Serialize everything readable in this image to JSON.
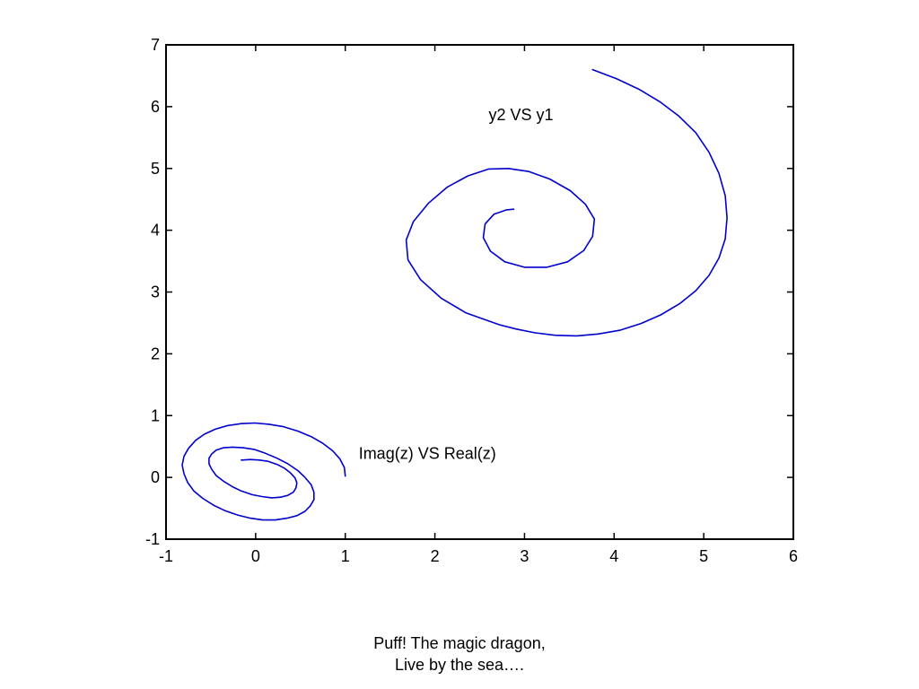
{
  "chart_data": {
    "type": "line",
    "title": "",
    "xlabel": "",
    "ylabel": "",
    "xlim": [
      -1,
      6
    ],
    "ylim": [
      -1,
      7
    ],
    "x_ticks": [
      -1,
      0,
      1,
      2,
      3,
      4,
      5,
      6
    ],
    "y_ticks": [
      -1,
      0,
      1,
      2,
      3,
      4,
      5,
      6,
      7
    ],
    "x_tick_labels": [
      "-1",
      "0",
      "1",
      "2",
      "3",
      "4",
      "5",
      "6"
    ],
    "y_tick_labels": [
      "-1",
      "0",
      "1",
      "2",
      "3",
      "4",
      "5",
      "6",
      "7"
    ],
    "grid": false,
    "line_color": "#0000cc",
    "series": [
      {
        "x": [
          1.0,
          0.99,
          0.94,
          0.86,
          0.75,
          0.62,
          0.47,
          0.31,
          0.15,
          -0.01,
          -0.16,
          -0.31,
          -0.45,
          -0.57,
          -0.67,
          -0.75,
          -0.8,
          -0.82,
          -0.8,
          -0.76,
          -0.69,
          -0.59,
          -0.47,
          -0.34,
          -0.2,
          -0.06,
          0.08,
          0.22,
          0.35,
          0.46,
          0.55,
          0.61,
          0.65,
          0.65,
          0.62,
          0.55,
          0.47,
          0.36,
          0.24,
          0.11,
          -0.01,
          -0.14,
          -0.26,
          -0.36,
          -0.44,
          -0.49,
          -0.52,
          -0.52,
          -0.49,
          -0.44,
          -0.36,
          -0.26,
          -0.16,
          -0.04,
          0.07,
          0.18,
          0.28,
          0.36,
          0.42,
          0.45,
          0.46,
          0.44,
          0.39,
          0.32,
          0.24,
          0.14,
          0.04,
          -0.06,
          -0.15,
          -0.16
        ],
        "y": [
          0.02,
          0.16,
          0.3,
          0.43,
          0.55,
          0.66,
          0.75,
          0.82,
          0.86,
          0.88,
          0.87,
          0.84,
          0.78,
          0.7,
          0.6,
          0.47,
          0.34,
          0.2,
          0.06,
          -0.08,
          -0.22,
          -0.34,
          -0.45,
          -0.54,
          -0.61,
          -0.66,
          -0.69,
          -0.69,
          -0.66,
          -0.62,
          -0.55,
          -0.46,
          -0.36,
          -0.24,
          -0.12,
          0.0,
          0.11,
          0.22,
          0.31,
          0.39,
          0.45,
          0.48,
          0.49,
          0.48,
          0.44,
          0.38,
          0.31,
          0.22,
          0.13,
          0.03,
          -0.06,
          -0.15,
          -0.22,
          -0.28,
          -0.31,
          -0.33,
          -0.32,
          -0.29,
          -0.24,
          -0.17,
          -0.09,
          -0.01,
          0.07,
          0.15,
          0.21,
          0.26,
          0.28,
          0.29,
          0.28,
          0.28
        ]
      },
      {
        "x": [
          3.76,
          4.03,
          4.28,
          4.51,
          4.72,
          4.91,
          5.06,
          5.17,
          5.24,
          5.26,
          5.24,
          5.17,
          5.06,
          4.91,
          4.73,
          4.52,
          4.3,
          4.06,
          3.82,
          3.58,
          3.34,
          3.12,
          2.91,
          2.72,
          2.35,
          2.07,
          1.84,
          1.7,
          1.68,
          1.76,
          1.93,
          2.14,
          2.37,
          2.6,
          2.82,
          3.05,
          3.28,
          3.51,
          3.68,
          3.78,
          3.76,
          3.66,
          3.48,
          3.25,
          3.0,
          2.78,
          2.62,
          2.54,
          2.56,
          2.66,
          2.8,
          2.88
        ],
        "y": [
          6.6,
          6.45,
          6.28,
          6.08,
          5.85,
          5.58,
          5.26,
          4.92,
          4.56,
          4.2,
          3.86,
          3.55,
          3.27,
          3.02,
          2.81,
          2.63,
          2.49,
          2.38,
          2.32,
          2.29,
          2.3,
          2.34,
          2.4,
          2.47,
          2.66,
          2.9,
          3.2,
          3.52,
          3.84,
          4.14,
          4.44,
          4.7,
          4.88,
          4.99,
          5.0,
          4.95,
          4.83,
          4.64,
          4.42,
          4.18,
          3.9,
          3.67,
          3.49,
          3.4,
          3.4,
          3.49,
          3.66,
          3.88,
          4.1,
          4.26,
          4.33,
          4.34
        ]
      }
    ],
    "annotations": [
      {
        "text": "y2 VS y1",
        "x": 2.6,
        "y": 5.78
      },
      {
        "text": "Imag(z) VS Real(z)",
        "x": 1.15,
        "y": 0.3
      }
    ]
  },
  "caption": {
    "line1": "Puff! The magic dragon,",
    "line2": "Live by the sea…."
  }
}
